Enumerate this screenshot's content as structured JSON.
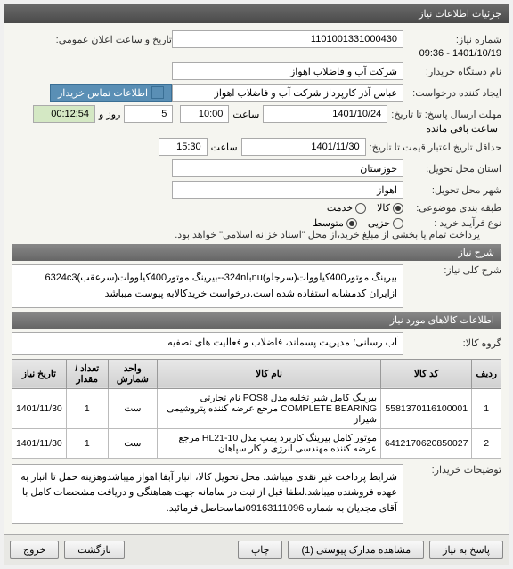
{
  "panel1": {
    "title": "جزئیات اطلاعات نیاز",
    "need_number_label": "شماره نیاز:",
    "need_number": "1101001331000430",
    "announce_label": "تاریخ و ساعت اعلان عمومی:",
    "announce_value": "1401/10/19 - 09:36",
    "buyer_label": "نام دستگاه خریدار:",
    "buyer_value": "شرکت آب و فاضلاب اهواز",
    "creator_label": "ایجاد کننده درخواست:",
    "creator_value": "عباس آذر کارپرداز شرکت آب و فاضلاب اهواز",
    "contact_btn": "اطلاعات تماس خریدار",
    "deadline_label": "مهلت ارسال پاسخ: تا تاریخ:",
    "deadline_date": "1401/10/24",
    "deadline_time_lbl": "ساعت",
    "deadline_time": "10:00",
    "days_lbl": "روز و",
    "days_val": "5",
    "remain_time": "00:12:54",
    "remain_lbl": "ساعت باقی مانده",
    "validity_label": "حداقل تاریخ اعتبار قیمت تا تاریخ:",
    "validity_date": "1401/11/30",
    "validity_time": "15:30",
    "province_label": "استان محل تحویل:",
    "province_value": "خوزستان",
    "city_label": "شهر محل تحویل:",
    "city_value": "اهواز",
    "category_label": "طبقه بندی موضوعی:",
    "cat_goods": "کالا",
    "cat_service": "خدمت",
    "purchase_type_label": "نوع فرآیند خرید :",
    "pt_small": "جزیی",
    "pt_medium": "متوسط",
    "pay_note": "پرداخت تمام یا بخشی از مبلغ خرید،از محل \"اسناد خزانه اسلامی\" خواهد بود."
  },
  "need_section": {
    "bar": "شرح نیاز",
    "title_label": "شرح کلی نیاز:",
    "title_text": "بیرینگ موتور400کیلووات(سرجلو)nuبا324n--بیرینگ موتور400کیلووات(سرعقب)6324c3 ازایران کدمشابه استفاده شده است.درخواست خریدکالابه پیوست میباشد"
  },
  "goods_section": {
    "bar": "اطلاعات کالاهای مورد نیاز",
    "group_label": "گروه کالا:",
    "group_value": "آب رسانی؛ مدیریت پسماند، فاضلاب و فعالیت های تصفیه",
    "columns": [
      "ردیف",
      "کد کالا",
      "نام کالا",
      "واحد شمارش",
      "تعداد / مقدار",
      "تاریخ نیاز"
    ],
    "rows": [
      [
        "1",
        "5581370116100001",
        "بیرینگ کامل شیر تخلیه مدل POS8 نام تجارتی COMPLETE BEARING مرجع عرضه کننده پتروشیمی شیراز",
        "ست",
        "1",
        "1401/11/30"
      ],
      [
        "2",
        "6412170620850027",
        "موتور کامل بیرینگ کاربرد پمپ مدل HL21-10 مرجع عرضه کننده مهندسی انرژی و کار سپاهان",
        "ست",
        "1",
        "1401/11/30"
      ]
    ]
  },
  "buyer_notes": {
    "label": "توضیحات خریدار:",
    "text": "شرایط پرداخت غیر نقدی میباشد. محل تحویل کالا، انبار آبفا اهواز میباشدوهزینه حمل تا انبار به عهده فروشنده میباشد.لطفا قبل از ثبت در سامانه جهت هماهنگی و دریافت مشخصات کامل با آقای مجدیان به شماره 09163111096تماسحاصل فرمائید."
  },
  "buttons": {
    "respond": "پاسخ به نیاز",
    "attachments": "مشاهده مدارک پیوستی (1)",
    "print": "چاپ",
    "back": "بازگشت",
    "exit": "خروج"
  }
}
